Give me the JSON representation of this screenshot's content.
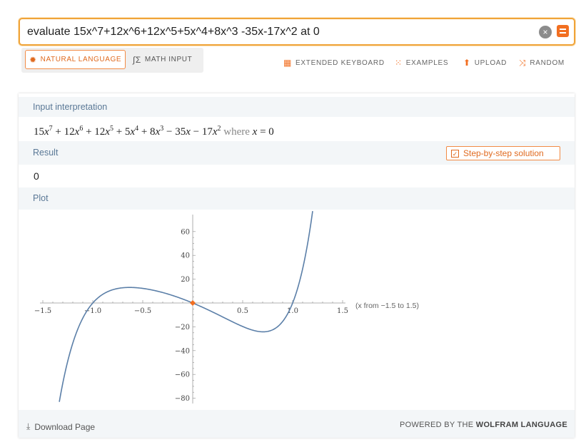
{
  "search": {
    "value": "evaluate 15x^7+12x^6+12x^5+5x^4+8x^3 -35x-17x^2 at 0",
    "clear_icon": "×"
  },
  "modes": {
    "natural": "NATURAL LANGUAGE",
    "math": "MATH INPUT"
  },
  "tools": {
    "keyboard": "EXTENDED KEYBOARD",
    "examples": "EXAMPLES",
    "upload": "UPLOAD",
    "random": "RANDOM"
  },
  "pods": {
    "interpretation": {
      "title": "Input interpretation",
      "where": "where"
    },
    "result": {
      "title": "Result",
      "value": "0",
      "step_button": "Step-by-step solution"
    },
    "plot": {
      "title": "Plot",
      "note": "(x from −1.5 to 1.5)"
    }
  },
  "footer": {
    "download": "Download Page",
    "powered_prefix": "POWERED BY THE",
    "powered_brand": "WOLFRAM LANGUAGE"
  },
  "colors": {
    "accent": "#f26f21",
    "curve": "#5b7fa8",
    "pod_header": "#f3f6f8",
    "pod_title": "#5a7896"
  },
  "chart_data": {
    "type": "line",
    "function": "15x^7+12x^6+12x^5+5x^4+8x^3-17x^2-35x",
    "xlim": [
      -1.5,
      1.5
    ],
    "ylim": [
      -85,
      70
    ],
    "x_ticks": [
      -1.5,
      -1.0,
      -0.5,
      0.5,
      1.0,
      1.5
    ],
    "x_tick_labels": [
      "−1.5",
      "−1.0",
      "−0.5",
      "0.5",
      "1.0",
      "1.5"
    ],
    "y_ticks": [
      60,
      40,
      20,
      -20,
      -40,
      -60,
      -80
    ],
    "y_tick_labels": [
      "60",
      "40",
      "20",
      "−20",
      "−40",
      "−60",
      "−80"
    ],
    "plot_domain": [
      -1.335,
      1.2
    ],
    "highlight_point": {
      "x": 0,
      "y": 0
    }
  }
}
